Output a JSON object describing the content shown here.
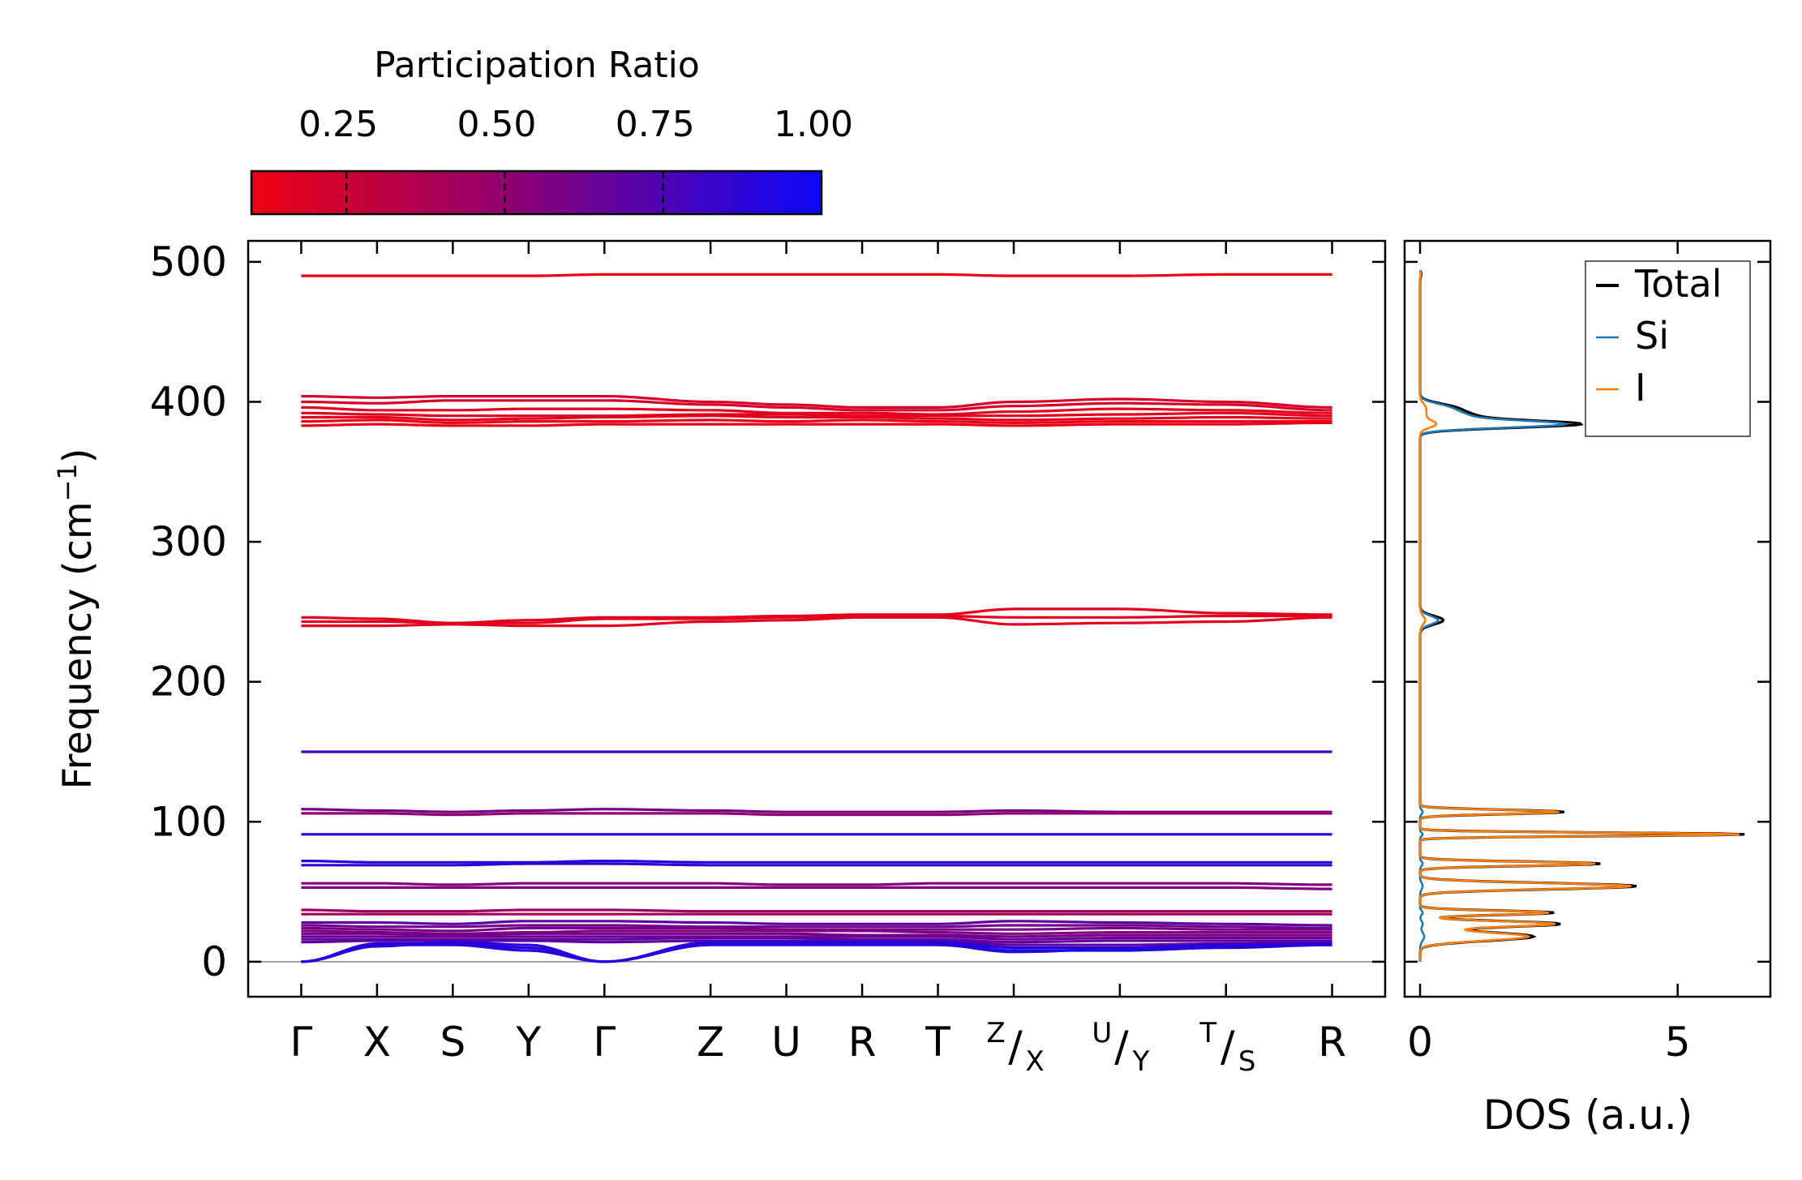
{
  "chart_data": [
    {
      "type": "line",
      "subtype": "phonon-band-structure",
      "ylabel": "Frequency (cm⁻¹)",
      "ylim": [
        -25,
        515
      ],
      "yticks": [
        0,
        100,
        200,
        300,
        400,
        500
      ],
      "ytick_labels": [
        "0",
        "100",
        "200",
        "300",
        "400",
        "500"
      ],
      "kpoints": [
        {
          "label": "Γ",
          "top": "",
          "bottom": "",
          "pos": 0
        },
        {
          "label": "X",
          "top": "",
          "bottom": "",
          "pos": 0.5
        },
        {
          "label": "S",
          "top": "",
          "bottom": "",
          "pos": 1.0
        },
        {
          "label": "Y",
          "top": "",
          "bottom": "",
          "pos": 1.5
        },
        {
          "label": "Γ",
          "top": "",
          "bottom": "",
          "pos": 2.0
        },
        {
          "label": "Z",
          "top": "",
          "bottom": "",
          "pos": 2.7
        },
        {
          "label": "U",
          "top": "",
          "bottom": "",
          "pos": 3.2
        },
        {
          "label": "R",
          "top": "",
          "bottom": "",
          "pos": 3.7
        },
        {
          "label": "T",
          "top": "",
          "bottom": "",
          "pos": 4.2
        },
        {
          "label": "",
          "top": "Z",
          "bottom": "X",
          "pos": 4.7
        },
        {
          "label": "",
          "top": "U",
          "bottom": "Y",
          "pos": 5.4
        },
        {
          "label": "",
          "top": "T",
          "bottom": "S",
          "pos": 6.1
        },
        {
          "label": "R",
          "top": "",
          "bottom": "",
          "pos": 6.8
        }
      ],
      "xlim": [
        -0.35,
        7.15
      ],
      "zero_line": 0,
      "bands": [
        {
          "freqs": [
            490,
            490,
            490,
            490,
            491,
            491,
            491,
            491,
            491,
            490,
            490,
            491,
            491
          ],
          "pr": 0.1
        },
        {
          "freqs": [
            404,
            403,
            404,
            404,
            404,
            400,
            398,
            396,
            396,
            400,
            402,
            400,
            396
          ],
          "pr": 0.2
        },
        {
          "freqs": [
            400,
            399,
            401,
            401,
            401,
            398,
            396,
            394,
            394,
            397,
            399,
            398,
            394
          ],
          "pr": 0.2
        },
        {
          "freqs": [
            396,
            394,
            394,
            395,
            395,
            394,
            392,
            392,
            391,
            393,
            395,
            394,
            392
          ],
          "pr": 0.15
        },
        {
          "freqs": [
            392,
            391,
            390,
            390,
            390,
            391,
            391,
            390,
            390,
            390,
            391,
            392,
            390
          ],
          "pr": 0.15
        },
        {
          "freqs": [
            389,
            389,
            387,
            388,
            389,
            390,
            389,
            389,
            388,
            387,
            388,
            389,
            388
          ],
          "pr": 0.15
        },
        {
          "freqs": [
            386,
            387,
            385,
            386,
            386,
            387,
            386,
            387,
            386,
            385,
            386,
            386,
            386
          ],
          "pr": 0.12
        },
        {
          "freqs": [
            383,
            384,
            383,
            383,
            384,
            384,
            384,
            384,
            384,
            383,
            384,
            384,
            385
          ],
          "pr": 0.12
        },
        {
          "freqs": [
            246,
            245,
            242,
            244,
            246,
            246,
            247,
            248,
            248,
            252,
            252,
            249,
            248
          ],
          "pr": 0.15
        },
        {
          "freqs": [
            243,
            243,
            242,
            242,
            245,
            245,
            246,
            247,
            247,
            246,
            246,
            247,
            247
          ],
          "pr": 0.15
        },
        {
          "freqs": [
            240,
            240,
            241,
            240,
            240,
            243,
            244,
            246,
            246,
            241,
            242,
            243,
            246
          ],
          "pr": 0.15
        },
        {
          "freqs": [
            150,
            150,
            150,
            150,
            150,
            150,
            150,
            150,
            150,
            150,
            150,
            150,
            150
          ],
          "pr": 0.8
        },
        {
          "freqs": [
            109,
            108,
            107,
            108,
            109,
            108,
            107,
            107,
            107,
            108,
            107,
            107,
            107
          ],
          "pr": 0.6
        },
        {
          "freqs": [
            106,
            106,
            105,
            106,
            106,
            106,
            105,
            105,
            105,
            106,
            106,
            106,
            106
          ],
          "pr": 0.5
        },
        {
          "freqs": [
            91,
            91,
            91,
            91,
            91,
            91,
            91,
            91,
            91,
            91,
            91,
            91,
            91
          ],
          "pr": 0.9
        },
        {
          "freqs": [
            72,
            71,
            71,
            71,
            72,
            71,
            71,
            71,
            71,
            71,
            71,
            71,
            71
          ],
          "pr": 0.9
        },
        {
          "freqs": [
            69,
            69,
            69,
            70,
            70,
            69,
            69,
            69,
            69,
            69,
            69,
            69,
            69
          ],
          "pr": 0.85
        },
        {
          "freqs": [
            56,
            56,
            55,
            56,
            56,
            56,
            55,
            55,
            56,
            56,
            56,
            56,
            55
          ],
          "pr": 0.55
        },
        {
          "freqs": [
            53,
            53,
            53,
            53,
            53,
            53,
            53,
            53,
            53,
            53,
            53,
            53,
            52
          ],
          "pr": 0.55
        },
        {
          "freqs": [
            37,
            36,
            36,
            37,
            37,
            36,
            36,
            36,
            36,
            36,
            36,
            36,
            36
          ],
          "pr": 0.45
        },
        {
          "freqs": [
            34,
            34,
            34,
            34,
            34,
            34,
            34,
            34,
            34,
            34,
            34,
            34,
            34
          ],
          "pr": 0.4
        },
        {
          "freqs": [
            28,
            28,
            27,
            29,
            29,
            28,
            27,
            27,
            27,
            29,
            28,
            27,
            26
          ],
          "pr": 0.7
        },
        {
          "freqs": [
            26,
            25,
            25,
            26,
            26,
            25,
            25,
            25,
            25,
            26,
            26,
            25,
            24
          ],
          "pr": 0.6
        },
        {
          "freqs": [
            24,
            23,
            22,
            24,
            24,
            24,
            23,
            23,
            23,
            23,
            24,
            23,
            23
          ],
          "pr": 0.6
        },
        {
          "freqs": [
            22,
            21,
            20,
            21,
            22,
            22,
            22,
            22,
            21,
            20,
            21,
            21,
            21
          ],
          "pr": 0.55
        },
        {
          "freqs": [
            20,
            20,
            19,
            20,
            20,
            20,
            20,
            19,
            19,
            18,
            19,
            19,
            19
          ],
          "pr": 0.6
        },
        {
          "freqs": [
            18,
            18,
            18,
            18,
            18,
            18,
            18,
            18,
            18,
            16,
            17,
            17,
            17
          ],
          "pr": 0.65
        },
        {
          "freqs": [
            16,
            16,
            16,
            16,
            16,
            17,
            17,
            16,
            16,
            14,
            15,
            15,
            15
          ],
          "pr": 0.65
        },
        {
          "freqs": [
            14,
            15,
            15,
            15,
            14,
            15,
            15,
            15,
            15,
            12,
            12,
            13,
            14
          ],
          "pr": 0.7
        },
        {
          "freqs": [
            0,
            11,
            14,
            12,
            0,
            14,
            14,
            14,
            14,
            10,
            10,
            12,
            13
          ],
          "pr": 0.9
        },
        {
          "freqs": [
            0,
            13,
            13,
            10,
            0,
            13,
            13,
            13,
            13,
            8,
            8,
            10,
            12
          ],
          "pr": 0.9
        },
        {
          "freqs": [
            0,
            12,
            12,
            8,
            0,
            12,
            12,
            12,
            12,
            7,
            9,
            11,
            12
          ],
          "pr": 0.9
        }
      ]
    },
    {
      "type": "line",
      "subtype": "density-of-states",
      "xlabel": "DOS (a.u.)",
      "xlim": [
        -0.3,
        6.8
      ],
      "xticks": [
        0,
        5
      ],
      "xtick_labels": [
        "0",
        "5"
      ],
      "ylim": [
        -25,
        515
      ],
      "legend": {
        "placement": "top-right",
        "entries": [
          "Total",
          "Si",
          "I"
        ]
      },
      "series": [
        {
          "name": "Total",
          "color": "#000000",
          "peaks": [
            [
              384,
              3.0,
              2.5
            ],
            [
              390,
              0.9,
              3
            ],
            [
              396,
              0.6,
              3
            ],
            [
              244,
              0.45,
              3
            ],
            [
              107,
              2.8,
              1.5
            ],
            [
              91,
              6.3,
              1.2
            ],
            [
              70,
              3.5,
              1.5
            ],
            [
              54,
              4.2,
              2.2
            ],
            [
              35,
              2.6,
              1.5
            ],
            [
              27,
              2.7,
              2.0
            ],
            [
              18,
              2.2,
              3.0
            ],
            [
              491,
              0.02,
              2
            ]
          ]
        },
        {
          "name": "Si",
          "color": "#1f77b4",
          "peaks": [
            [
              384,
              2.7,
              2.5
            ],
            [
              390,
              0.8,
              3
            ],
            [
              396,
              0.5,
              3
            ],
            [
              244,
              0.35,
              3
            ],
            [
              107,
              0.05,
              1.5
            ],
            [
              91,
              0.05,
              1.2
            ],
            [
              70,
              0.05,
              1.5
            ],
            [
              54,
              0.05,
              2.2
            ],
            [
              35,
              0.05,
              1.5
            ],
            [
              27,
              0.05,
              2.0
            ],
            [
              18,
              0.08,
              3.0
            ],
            [
              491,
              0.01,
              2
            ]
          ]
        },
        {
          "name": "I",
          "color": "#ff7f0e",
          "peaks": [
            [
              384,
              0.3,
              2.5
            ],
            [
              390,
              0.1,
              3
            ],
            [
              396,
              0.1,
              3
            ],
            [
              244,
              0.1,
              3
            ],
            [
              107,
              2.7,
              1.5
            ],
            [
              91,
              6.2,
              1.2
            ],
            [
              70,
              3.4,
              1.5
            ],
            [
              54,
              4.1,
              2.2
            ],
            [
              35,
              2.5,
              1.5
            ],
            [
              27,
              2.6,
              2.0
            ],
            [
              18,
              2.1,
              3.0
            ],
            [
              491,
              0.01,
              2
            ]
          ]
        }
      ]
    }
  ],
  "colorbar": {
    "title": "Participation Ratio",
    "range": [
      0.1,
      1.0
    ],
    "ticks": [
      0.25,
      0.5,
      0.75,
      1.0
    ],
    "tick_labels": [
      "0.25",
      "0.50",
      "0.75",
      "1.00"
    ],
    "colors": {
      "low": "#ee0011",
      "mid": "#8f0070",
      "high": "#0a06f8"
    }
  }
}
